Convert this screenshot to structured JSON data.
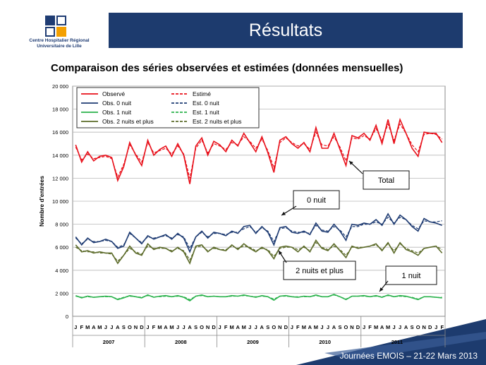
{
  "header": {
    "logo_line1": "Centre Hospitalier Régional",
    "logo_line2": "Universitaire de Lille",
    "title": "Résultats"
  },
  "subtitle": "Comparaison des séries observées et estimées (données mensuelles)",
  "footer": "Journées EMOIS – 21-22 Mars 2013",
  "colors": {
    "observe": "#e8101a",
    "obs0": "#1f3c73",
    "obs1": "#2bb24c",
    "obs2": "#5c6b2a",
    "title_bar": "#1d3b6e"
  },
  "chart_data": {
    "type": "line",
    "title": "",
    "xlabel": "",
    "ylabel": "Nombre d'entrées",
    "ylim": [
      0,
      20000
    ],
    "yticks": [
      "0",
      "2 000",
      "4 000",
      "6 000",
      "8 000",
      "10 000",
      "12 000",
      "14 000",
      "16 000",
      "18 000",
      "20 000"
    ],
    "grid": true,
    "legend_position": "top-left",
    "month_letters": [
      "J",
      "F",
      "M",
      "A",
      "M",
      "J",
      "J",
      "A",
      "S",
      "O",
      "N",
      "D"
    ],
    "years": [
      "2007",
      "2008",
      "2009",
      "2010",
      "2011"
    ],
    "annotations": [
      "Total",
      "0 nuit",
      "2 nuits et plus",
      "1 nuit"
    ],
    "series": [
      {
        "name": "Observé",
        "style": "solid",
        "color": "#e8101a",
        "values": [
          14900,
          13400,
          14300,
          13500,
          13900,
          14000,
          13800,
          11800,
          13000,
          15100,
          14000,
          13100,
          15300,
          14000,
          14500,
          14800,
          13900,
          15000,
          14000,
          11500,
          14800,
          15500,
          14000,
          15200,
          14900,
          14300,
          15300,
          14800,
          15900,
          15100,
          14300,
          15600,
          14200,
          12500,
          15300,
          15600,
          15000,
          14600,
          15100,
          14300,
          16400,
          14600,
          14600,
          15900,
          14500,
          13100,
          15700,
          15500,
          15900,
          15300,
          16600,
          15000,
          17100,
          15000,
          17100,
          15900,
          14600,
          13900,
          16000,
          15900,
          15900,
          15100
        ]
      },
      {
        "name": "Estimé",
        "style": "dashed",
        "color": "#e8101a",
        "values": [
          14700,
          13600,
          14100,
          13700,
          13800,
          13900,
          13700,
          12100,
          13200,
          14900,
          14100,
          13400,
          15100,
          14200,
          14400,
          14600,
          14100,
          14800,
          14100,
          12000,
          14600,
          15300,
          14200,
          15000,
          14800,
          14500,
          15100,
          14900,
          15600,
          15200,
          14600,
          15400,
          14400,
          12900,
          15100,
          15500,
          15100,
          14800,
          15000,
          14500,
          16000,
          14900,
          14800,
          15600,
          14700,
          13500,
          15500,
          15400,
          15700,
          15400,
          16300,
          15300,
          16700,
          15300,
          16700,
          15900,
          14900,
          14300,
          15800,
          15900,
          15800,
          15400
        ]
      },
      {
        "name": "Obs. 0 nuit",
        "style": "solid",
        "color": "#1f3c73",
        "values": [
          6900,
          6200,
          6800,
          6400,
          6500,
          6700,
          6500,
          5900,
          6100,
          7300,
          6800,
          6300,
          7000,
          6700,
          6900,
          7100,
          6700,
          7200,
          6800,
          5600,
          6900,
          7400,
          6800,
          7300,
          7200,
          7000,
          7400,
          7200,
          7800,
          7900,
          7200,
          7800,
          7300,
          6200,
          7700,
          7800,
          7300,
          7200,
          7400,
          7100,
          8100,
          7400,
          7300,
          8000,
          7400,
          6600,
          8000,
          7900,
          8100,
          8000,
          8400,
          7900,
          8900,
          8000,
          8800,
          8400,
          7800,
          7400,
          8500,
          8200,
          8100,
          7900
        ]
      },
      {
        "name": "Est. 0 nuit",
        "style": "dashed",
        "color": "#1f3c73",
        "values": [
          6800,
          6300,
          6700,
          6500,
          6500,
          6600,
          6500,
          6000,
          6200,
          7200,
          6800,
          6400,
          6900,
          6800,
          6900,
          7000,
          6800,
          7100,
          6900,
          5900,
          6900,
          7300,
          6900,
          7200,
          7200,
          7100,
          7300,
          7300,
          7600,
          7800,
          7300,
          7700,
          7400,
          6500,
          7600,
          7700,
          7400,
          7300,
          7300,
          7200,
          7900,
          7500,
          7400,
          7800,
          7500,
          6900,
          7800,
          7800,
          8000,
          8000,
          8200,
          8000,
          8600,
          8100,
          8600,
          8400,
          7900,
          7600,
          8300,
          8200,
          8200,
          8300
        ]
      },
      {
        "name": "Obs. 1 nuit",
        "style": "solid",
        "color": "#2bb24c",
        "values": [
          1800,
          1600,
          1750,
          1650,
          1700,
          1750,
          1700,
          1450,
          1600,
          1800,
          1700,
          1600,
          1850,
          1650,
          1750,
          1800,
          1700,
          1800,
          1650,
          1350,
          1750,
          1850,
          1700,
          1750,
          1700,
          1700,
          1800,
          1750,
          1850,
          1750,
          1650,
          1800,
          1700,
          1400,
          1750,
          1800,
          1700,
          1650,
          1750,
          1700,
          1850,
          1700,
          1700,
          1900,
          1700,
          1450,
          1750,
          1750,
          1800,
          1700,
          1800,
          1650,
          1850,
          1700,
          1800,
          1750,
          1600,
          1450,
          1700,
          1700,
          1650,
          1600
        ]
      },
      {
        "name": "Est. 1 nuit",
        "style": "dashed",
        "color": "#2bb24c",
        "values": [
          1750,
          1650,
          1700,
          1650,
          1700,
          1700,
          1700,
          1500,
          1650,
          1750,
          1700,
          1650,
          1800,
          1700,
          1700,
          1750,
          1700,
          1750,
          1700,
          1450,
          1750,
          1800,
          1700,
          1750,
          1700,
          1700,
          1750,
          1750,
          1800,
          1750,
          1700,
          1750,
          1700,
          1500,
          1750,
          1750,
          1700,
          1700,
          1700,
          1700,
          1800,
          1700,
          1700,
          1850,
          1700,
          1500,
          1750,
          1750,
          1750,
          1700,
          1750,
          1700,
          1800,
          1700,
          1750,
          1700,
          1650,
          1500,
          1700,
          1700,
          1650,
          1650
        ]
      },
      {
        "name": "Obs. 2 nuits et plus",
        "style": "solid",
        "color": "#5c6b2a",
        "values": [
          6200,
          5600,
          5700,
          5500,
          5600,
          5500,
          5500,
          4600,
          5300,
          6100,
          5500,
          5300,
          6300,
          5800,
          6000,
          5900,
          5600,
          6000,
          5600,
          4600,
          6100,
          6200,
          5600,
          6000,
          5800,
          5700,
          6200,
          5800,
          6300,
          5900,
          5600,
          6000,
          5700,
          5000,
          6000,
          6100,
          6000,
          5600,
          6100,
          5600,
          6600,
          5900,
          5700,
          6300,
          5700,
          5100,
          6100,
          5900,
          6000,
          6100,
          6300,
          5700,
          6400,
          5500,
          6400,
          5800,
          5600,
          5300,
          5900,
          6000,
          6100,
          5500
        ]
      },
      {
        "name": "Est. 2 nuits et plus",
        "style": "dashed",
        "color": "#5c6b2a",
        "values": [
          6000,
          5700,
          5600,
          5600,
          5500,
          5500,
          5400,
          4800,
          5300,
          5900,
          5600,
          5400,
          6100,
          5900,
          5900,
          5900,
          5700,
          5900,
          5700,
          4900,
          6000,
          6100,
          5700,
          5900,
          5800,
          5800,
          6100,
          5900,
          6100,
          6000,
          5700,
          5900,
          5800,
          5200,
          5900,
          6000,
          6000,
          5800,
          6000,
          5700,
          6400,
          6000,
          5800,
          6100,
          5800,
          5300,
          6000,
          6000,
          6000,
          6100,
          6200,
          5800,
          6300,
          5700,
          6300,
          5900,
          5700,
          5500,
          5900,
          6000,
          6100,
          5800
        ]
      }
    ]
  }
}
